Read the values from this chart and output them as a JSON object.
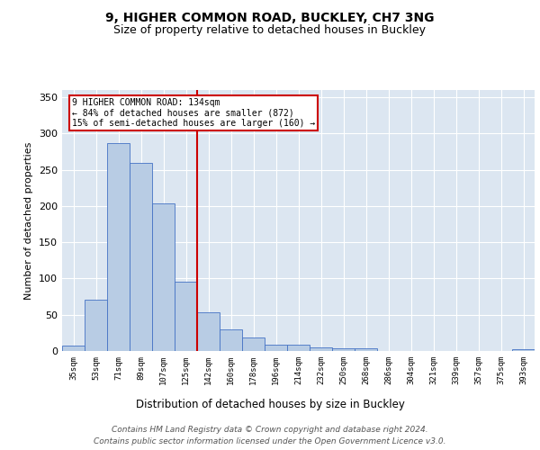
{
  "title_line1": "9, HIGHER COMMON ROAD, BUCKLEY, CH7 3NG",
  "title_line2": "Size of property relative to detached houses in Buckley",
  "xlabel": "Distribution of detached houses by size in Buckley",
  "ylabel": "Number of detached properties",
  "categories": [
    "35sqm",
    "53sqm",
    "71sqm",
    "89sqm",
    "107sqm",
    "125sqm",
    "142sqm",
    "160sqm",
    "178sqm",
    "196sqm",
    "214sqm",
    "232sqm",
    "250sqm",
    "268sqm",
    "286sqm",
    "304sqm",
    "321sqm",
    "339sqm",
    "357sqm",
    "375sqm",
    "393sqm"
  ],
  "values": [
    8,
    71,
    287,
    260,
    204,
    95,
    53,
    30,
    19,
    9,
    9,
    5,
    4,
    4,
    0,
    0,
    0,
    0,
    0,
    0,
    2
  ],
  "bar_color": "#b8cce4",
  "bar_edge_color": "#4472c4",
  "plot_bg_color": "#dce6f1",
  "ref_line_x": 5.5,
  "ref_line_color": "#cc0000",
  "annotation_text": "9 HIGHER COMMON ROAD: 134sqm\n← 84% of detached houses are smaller (872)\n15% of semi-detached houses are larger (160) →",
  "annotation_box_color": "#cc0000",
  "ylim": [
    0,
    360
  ],
  "yticks": [
    0,
    50,
    100,
    150,
    200,
    250,
    300,
    350
  ],
  "footer_line1": "Contains HM Land Registry data © Crown copyright and database right 2024.",
  "footer_line2": "Contains public sector information licensed under the Open Government Licence v3.0.",
  "title_fontsize": 10,
  "subtitle_fontsize": 9,
  "footer_fontsize": 6.5
}
